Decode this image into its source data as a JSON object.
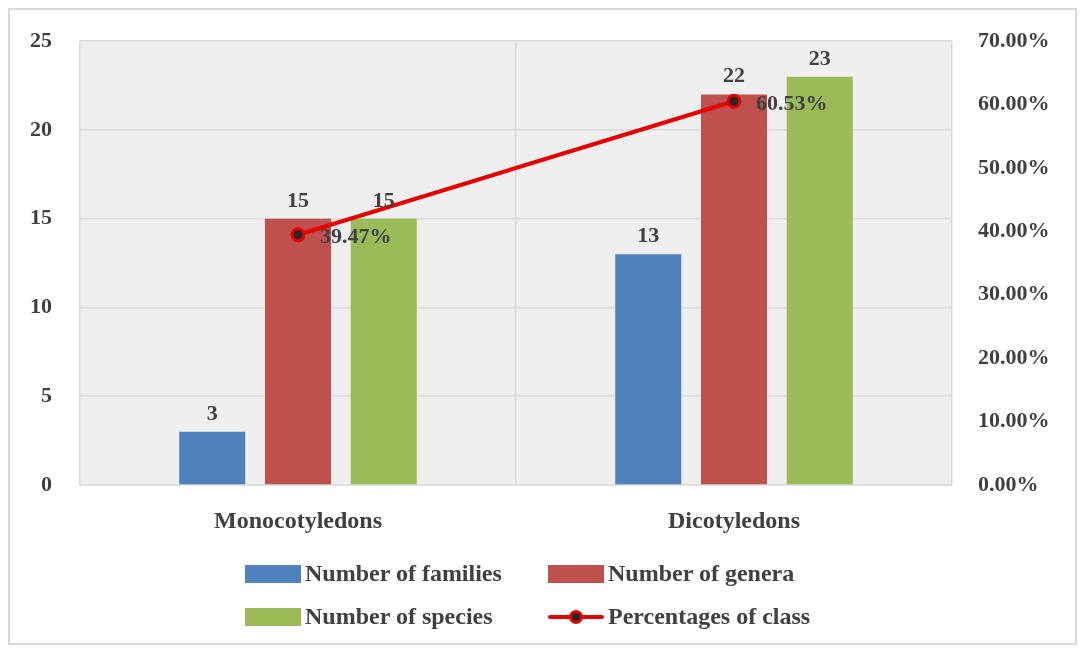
{
  "chart_data": {
    "type": "bar",
    "categories": [
      "Monocotyledons",
      "Dicotyledons"
    ],
    "series": [
      {
        "name": "Number of families",
        "color": "#4f81bd",
        "values": [
          3,
          13
        ],
        "value_labels": [
          "3",
          "13"
        ]
      },
      {
        "name": "Number of genera",
        "color": "#c0504d",
        "values": [
          15,
          22
        ],
        "value_labels": [
          "15",
          "22"
        ]
      },
      {
        "name": "Number of species",
        "color": "#9bbb59",
        "values": [
          15,
          23
        ],
        "value_labels": [
          "15",
          "23"
        ]
      },
      {
        "name": "Percentages of class",
        "type": "line",
        "axis": "y2",
        "color": "#e60000",
        "values": [
          39.47,
          60.53
        ],
        "value_labels": [
          "39.47%",
          "60.53%"
        ]
      }
    ],
    "ylim": [
      0,
      25
    ],
    "yticks": [
      0,
      5,
      10,
      15,
      20,
      25
    ],
    "y2lim": [
      0,
      70
    ],
    "y2ticks": [
      {
        "value": 0,
        "label": "0.00%"
      },
      {
        "value": 10,
        "label": "10.00%"
      },
      {
        "value": 20,
        "label": "20.00%"
      },
      {
        "value": 30,
        "label": "30.00%"
      },
      {
        "value": 40,
        "label": "40.00%"
      },
      {
        "value": 50,
        "label": "50.00%"
      },
      {
        "value": 60,
        "label": "60.00%"
      },
      {
        "value": 70,
        "label": "70.00%"
      }
    ],
    "grid": true,
    "legend": "bottom",
    "marker": "circle"
  }
}
